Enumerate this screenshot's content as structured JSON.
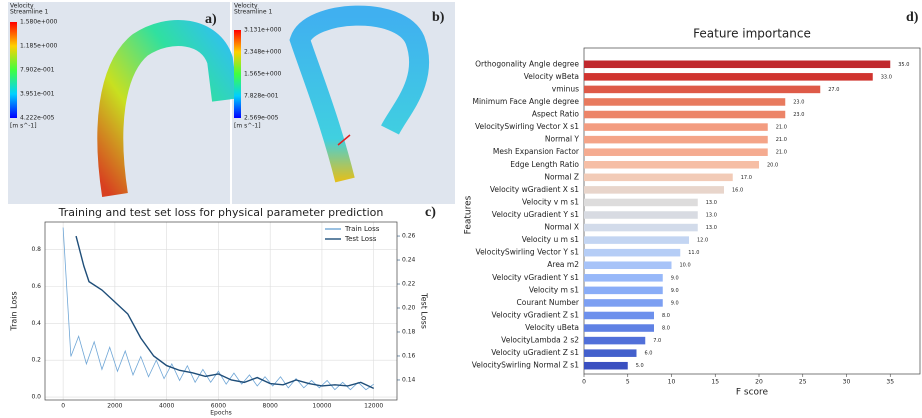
{
  "images": [
    {
      "label": "a)",
      "title": "Velocity",
      "subtitle": "Streamline 1",
      "colorbar_labels": [
        "1.580e+000",
        "1.185e+000",
        "7.902e-001",
        "3.951e-001",
        "4.222e-005"
      ],
      "unit": "[m s^-1]"
    },
    {
      "label": "b)",
      "title": "Velocity",
      "subtitle": "Streamline 1",
      "colorbar_labels": [
        "3.131e+000",
        "2.348e+000",
        "1.565e+000",
        "7.828e-001",
        "2.569e-005"
      ],
      "unit": "[m s^-1]"
    }
  ],
  "chart_data": [
    {
      "type": "line",
      "label": "c)",
      "title": "Training and test set loss for physical parameter prediction",
      "xlabel": "Epochs",
      "ylabel": "Train Loss",
      "y2label": "Test Loss",
      "xlim": [
        -700,
        12900
      ],
      "xticks": [
        0,
        2000,
        4000,
        6000,
        8000,
        10000,
        12000
      ],
      "ylim": [
        -0.016,
        0.95
      ],
      "yticks": [
        {
          "value": 0,
          "label": "0.0"
        },
        {
          "value": 0.2,
          "label": "0.2"
        },
        {
          "value": 0.4,
          "label": "0.4"
        },
        {
          "value": 0.6,
          "label": "0.6"
        },
        {
          "value": 0.8,
          "label": "0.8"
        }
      ],
      "y2lim": [
        0.1233,
        0.2717
      ],
      "y2ticks": [
        0.14,
        0.16,
        0.18,
        {
          "value": 0.2,
          "label": "0.20"
        },
        0.22,
        0.24,
        0.26
      ],
      "grid": true,
      "legend": "upper right",
      "series": [
        {
          "name": "Train Loss",
          "color": "#6fa6d6",
          "x": [
            0,
            300,
            600,
            900,
            1200,
            1500,
            1800,
            2100,
            2400,
            2700,
            3000,
            3300,
            3600,
            3900,
            4200,
            4500,
            4800,
            5100,
            5400,
            5700,
            6000,
            6300,
            6600,
            6900,
            7200,
            7500,
            7800,
            8100,
            8400,
            8700,
            9000,
            9300,
            9600,
            9900,
            10200,
            10500,
            10800,
            11100,
            11400,
            11700,
            12000
          ],
          "values": [
            0.92,
            0.22,
            0.33,
            0.18,
            0.3,
            0.15,
            0.27,
            0.14,
            0.25,
            0.12,
            0.22,
            0.11,
            0.2,
            0.1,
            0.18,
            0.09,
            0.17,
            0.08,
            0.15,
            0.08,
            0.14,
            0.07,
            0.13,
            0.07,
            0.12,
            0.06,
            0.11,
            0.06,
            0.11,
            0.05,
            0.1,
            0.05,
            0.09,
            0.05,
            0.09,
            0.04,
            0.08,
            0.04,
            0.08,
            0.04,
            0.07
          ]
        },
        {
          "name": "Test Loss",
          "color": "#1f4e79",
          "axis": "y2",
          "x": [
            500,
            800,
            1000,
            1500,
            2000,
            2500,
            3000,
            3500,
            4000,
            4500,
            5000,
            5500,
            6000,
            6500,
            7000,
            7500,
            8000,
            8500,
            9000,
            9500,
            10000,
            10500,
            11000,
            11500,
            12000
          ],
          "values": [
            0.26,
            0.235,
            0.222,
            0.215,
            0.205,
            0.195,
            0.175,
            0.16,
            0.152,
            0.148,
            0.146,
            0.143,
            0.145,
            0.14,
            0.138,
            0.142,
            0.137,
            0.136,
            0.14,
            0.137,
            0.135,
            0.136,
            0.135,
            0.138,
            0.133
          ]
        }
      ]
    },
    {
      "type": "barh",
      "label": "d)",
      "title": "Feature importance",
      "xlabel": "F score",
      "ylabel": "Features",
      "xlim": [
        0,
        38.4
      ],
      "xticks": [
        0,
        5,
        10,
        15,
        20,
        25,
        30,
        35
      ],
      "categories": [
        "Orthogonality Angle  degree",
        "Velocity wBeta",
        "vminus",
        "Minimum Face Angle  degree",
        "Aspect Ratio",
        "VelocitySwirling Vector X  s1",
        "Normal Y",
        "Mesh Expansion Factor",
        "Edge Length Ratio",
        "Normal Z",
        "Velocity wGradient X  s1",
        "Velocity v  m s1",
        "Velocity uGradient Y  s1",
        "Normal X",
        "Velocity u  m s1",
        "VelocitySwirling Vector Y  s1",
        "Area  m2",
        "Velocity vGradient Y  s1",
        "Velocity  m s1",
        "Courant Number",
        "Velocity vGradient Z  s1",
        "Velocity uBeta",
        "VelocityLambda 2  s2",
        "Velocity uGradient Z  s1",
        "VelocitySwirling Normal Z  s1"
      ],
      "values": [
        35,
        33,
        27,
        23,
        23,
        21,
        21,
        21,
        20,
        17,
        16,
        13,
        13,
        13,
        12,
        11,
        10,
        9,
        9,
        9,
        8,
        8,
        7,
        6,
        5
      ],
      "value_labels": [
        "35.0",
        "33.0",
        "27.0",
        "23.0",
        "23.0",
        "21.0",
        "21.0",
        "21.0",
        "20.0",
        "17.0",
        "16.0",
        "13.0",
        "13.0",
        "13.0",
        "12.0",
        "11.0",
        "10.0",
        "9.0",
        "9.0",
        "9.0",
        "8.0",
        "8.0",
        "7.0",
        "6.0",
        "5.0"
      ],
      "colors": [
        "#c0282d",
        "#d0342f",
        "#de5a48",
        "#e87a5e",
        "#ec8468",
        "#f39c80",
        "#f4a488",
        "#f5ab90",
        "#f6bea5",
        "#f2cbb7",
        "#e8d5cb",
        "#dddcdc",
        "#d8dbe2",
        "#d2dbea",
        "#c3d5f2",
        "#b5cdf6",
        "#a7c3f8",
        "#97b8f9",
        "#8aadf7",
        "#7c9ff2",
        "#6d90ec",
        "#5f81e4",
        "#5170d9",
        "#4360cc",
        "#3a4fc0"
      ]
    }
  ]
}
